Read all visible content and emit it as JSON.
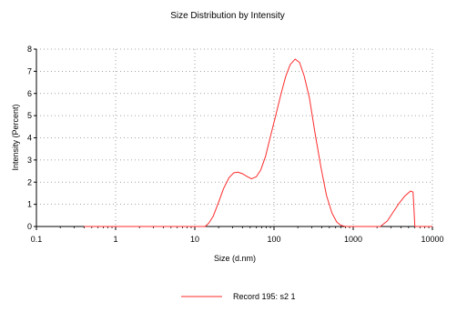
{
  "chart_data": {
    "type": "line",
    "title": "Size Distribution by Intensity",
    "xlabel": "Size (d.nm)",
    "ylabel": "Intensity (Percent)",
    "x_scale": "log",
    "xlim": [
      0.1,
      10000
    ],
    "ylim": [
      0,
      8
    ],
    "x_ticks": [
      0.1,
      1,
      10,
      100,
      1000,
      10000
    ],
    "x_tick_labels": [
      "0.1",
      "1",
      "10",
      "100",
      "1000",
      "10000"
    ],
    "y_ticks": [
      0,
      1,
      2,
      3,
      4,
      5,
      6,
      7,
      8
    ],
    "y_tick_labels": [
      "0",
      "1",
      "2",
      "3",
      "4",
      "5",
      "6",
      "7",
      "8"
    ],
    "grid": true,
    "legend_position": "bottom-center",
    "series": [
      {
        "name": "Record 195: s2 1",
        "color": "#ff2a2a",
        "points": [
          [
            0.4,
            0
          ],
          [
            1,
            0
          ],
          [
            5,
            0
          ],
          [
            10,
            0
          ],
          [
            13.5,
            0
          ],
          [
            15,
            0.15
          ],
          [
            17,
            0.45
          ],
          [
            20,
            1.1
          ],
          [
            23,
            1.7
          ],
          [
            27,
            2.2
          ],
          [
            31,
            2.42
          ],
          [
            35,
            2.45
          ],
          [
            40,
            2.38
          ],
          [
            46,
            2.25
          ],
          [
            52,
            2.15
          ],
          [
            60,
            2.25
          ],
          [
            68,
            2.55
          ],
          [
            78,
            3.15
          ],
          [
            90,
            4.05
          ],
          [
            105,
            5.0
          ],
          [
            122,
            5.95
          ],
          [
            140,
            6.75
          ],
          [
            160,
            7.3
          ],
          [
            185,
            7.55
          ],
          [
            210,
            7.4
          ],
          [
            240,
            6.8
          ],
          [
            280,
            5.8
          ],
          [
            330,
            4.2
          ],
          [
            390,
            2.7
          ],
          [
            460,
            1.4
          ],
          [
            540,
            0.6
          ],
          [
            620,
            0.2
          ],
          [
            700,
            0.05
          ],
          [
            800,
            0
          ],
          [
            1000,
            0
          ],
          [
            1800,
            0
          ],
          [
            2200,
            0
          ],
          [
            2700,
            0.25
          ],
          [
            3200,
            0.65
          ],
          [
            3800,
            1.05
          ],
          [
            4500,
            1.38
          ],
          [
            5300,
            1.6
          ],
          [
            5700,
            1.55
          ],
          [
            5850,
            0.8
          ],
          [
            6000,
            0
          ],
          [
            10000,
            0
          ]
        ]
      }
    ]
  }
}
